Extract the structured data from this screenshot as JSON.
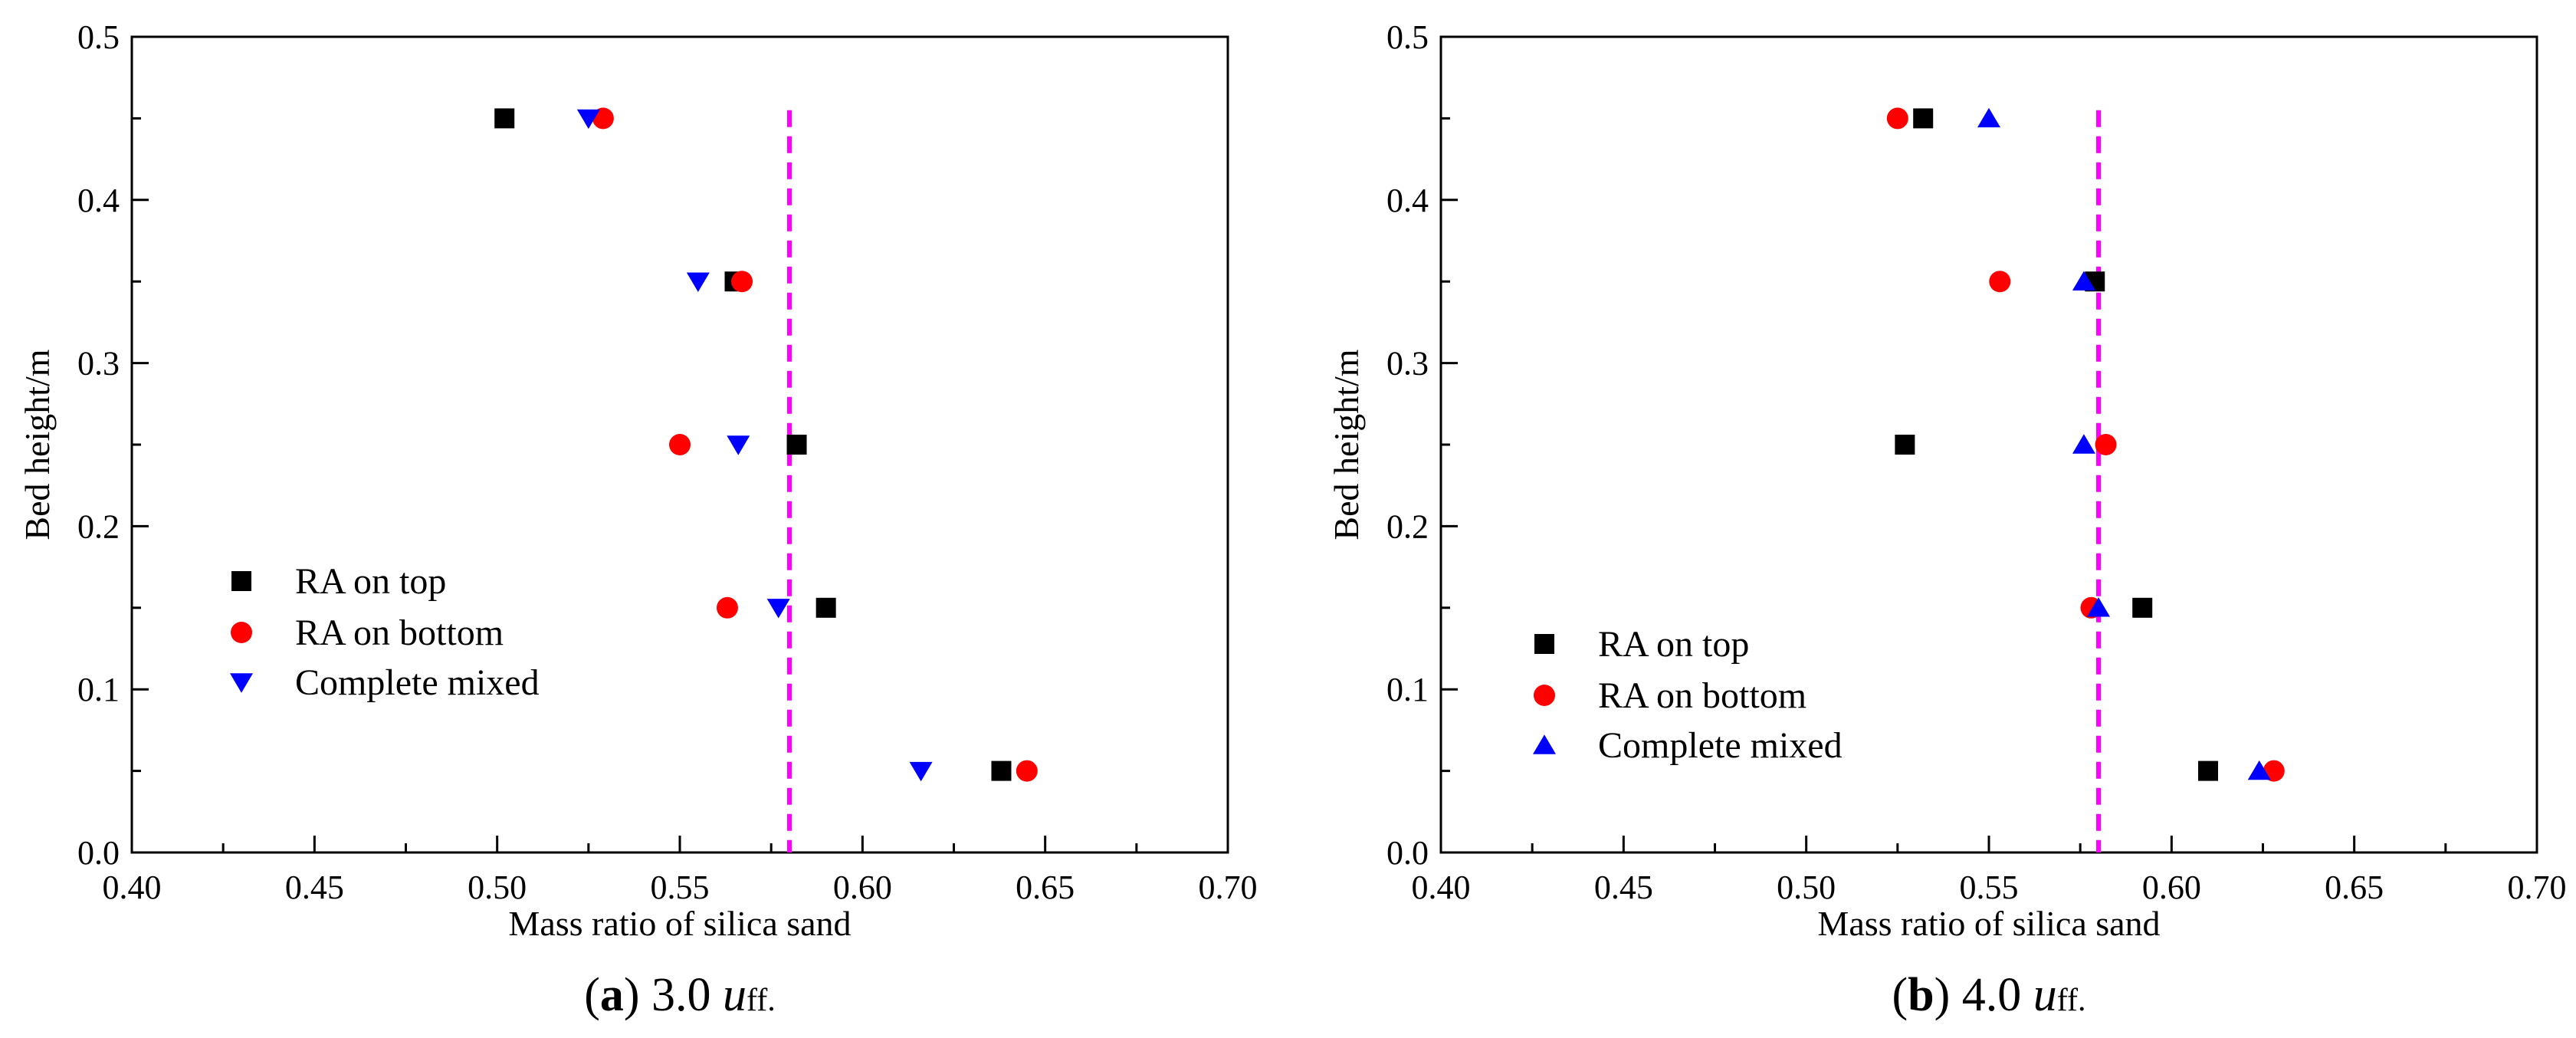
{
  "chart_data": [
    {
      "type": "scatter",
      "caption_label": "a",
      "caption_value": "3.0",
      "caption_u": "u",
      "caption_sub": "ff.",
      "xlabel": "Mass ratio of silica sand",
      "ylabel": "Bed height/m",
      "xlim": [
        0.4,
        0.7
      ],
      "ylim": [
        0.0,
        0.5
      ],
      "xticks": [
        "0.40",
        "0.45",
        "0.50",
        "0.55",
        "0.60",
        "0.65",
        "0.70"
      ],
      "yticks": [
        "0.0",
        "0.1",
        "0.2",
        "0.3",
        "0.4",
        "0.5"
      ],
      "reference_line_x": 0.58,
      "legend_position": "lower-left",
      "series": [
        {
          "name": "RA on top",
          "marker": "square",
          "color": "#000000",
          "points": [
            [
              0.502,
              0.45
            ],
            [
              0.565,
              0.35
            ],
            [
              0.582,
              0.25
            ],
            [
              0.59,
              0.15
            ],
            [
              0.638,
              0.05
            ]
          ]
        },
        {
          "name": "RA on bottom",
          "marker": "circle",
          "color": "#ff0000",
          "points": [
            [
              0.529,
              0.45
            ],
            [
              0.567,
              0.35
            ],
            [
              0.55,
              0.25
            ],
            [
              0.563,
              0.15
            ],
            [
              0.645,
              0.05
            ]
          ]
        },
        {
          "name": "Complete mixed",
          "marker": "triangle-down",
          "color": "#0000ff",
          "points": [
            [
              0.525,
              0.45
            ],
            [
              0.555,
              0.35
            ],
            [
              0.566,
              0.25
            ],
            [
              0.577,
              0.15
            ],
            [
              0.616,
              0.05
            ]
          ]
        }
      ]
    },
    {
      "type": "scatter",
      "caption_label": "b",
      "caption_value": "4.0",
      "caption_u": "u",
      "caption_sub": "ff.",
      "xlabel": "Mass ratio of silica sand",
      "ylabel": "Bed height/m",
      "xlim": [
        0.4,
        0.7
      ],
      "ylim": [
        0.0,
        0.5
      ],
      "xticks": [
        "0.40",
        "0.45",
        "0.50",
        "0.55",
        "0.60",
        "0.65",
        "0.70"
      ],
      "yticks": [
        "0.0",
        "0.1",
        "0.2",
        "0.3",
        "0.4",
        "0.5"
      ],
      "reference_line_x": 0.58,
      "legend_position": "lower-left",
      "series": [
        {
          "name": "RA on top",
          "marker": "square",
          "color": "#000000",
          "points": [
            [
              0.532,
              0.45
            ],
            [
              0.579,
              0.35
            ],
            [
              0.527,
              0.25
            ],
            [
              0.592,
              0.15
            ],
            [
              0.61,
              0.05
            ]
          ]
        },
        {
          "name": "RA on bottom",
          "marker": "circle",
          "color": "#ff0000",
          "points": [
            [
              0.525,
              0.45
            ],
            [
              0.553,
              0.35
            ],
            [
              0.582,
              0.25
            ],
            [
              0.578,
              0.15
            ],
            [
              0.628,
              0.05
            ]
          ]
        },
        {
          "name": "Complete mixed",
          "marker": "triangle-up",
          "color": "#0000ff",
          "points": [
            [
              0.55,
              0.45
            ],
            [
              0.576,
              0.35
            ],
            [
              0.576,
              0.25
            ],
            [
              0.58,
              0.15
            ],
            [
              0.624,
              0.05
            ]
          ]
        }
      ]
    }
  ],
  "colors": {
    "reference_line": "#ff00ff",
    "axis": "#000000"
  }
}
